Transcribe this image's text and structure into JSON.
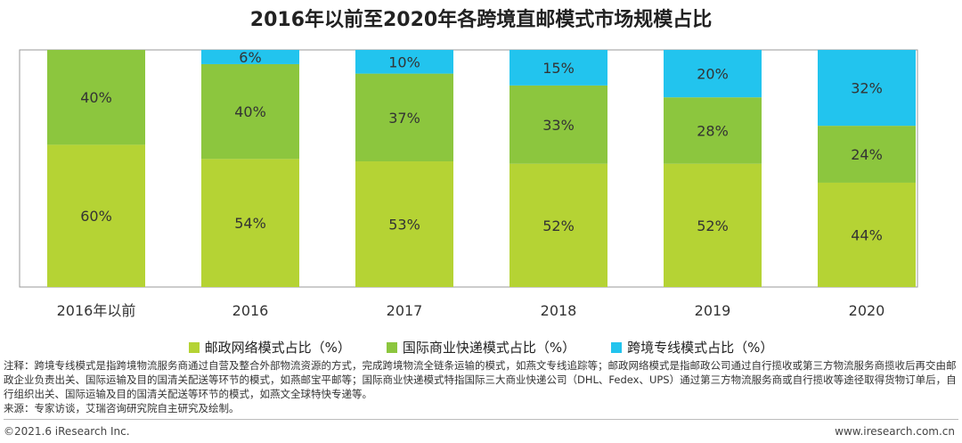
{
  "chart_data": {
    "type": "bar",
    "stacked": true,
    "title": "2016年以前至2020年各跨境直邮模式市场规模占比",
    "categories": [
      "2016年以前",
      "2016",
      "2017",
      "2018",
      "2019",
      "2020"
    ],
    "series": [
      {
        "name": "邮政网络模式占比（%）",
        "color": "#b5d334",
        "values": [
          60,
          54,
          53,
          52,
          52,
          44
        ]
      },
      {
        "name": "国际商业快递模式占比（%）",
        "color": "#8cc63e",
        "values": [
          40,
          40,
          37,
          33,
          28,
          24
        ]
      },
      {
        "name": "跨境专线模式占比（%）",
        "color": "#22c4ee",
        "values": [
          0,
          6,
          10,
          15,
          20,
          32
        ]
      }
    ],
    "label_suffix": "%",
    "ylim": [
      0,
      100
    ]
  },
  "note": "注释：跨境专线模式是指跨境物流服务商通过自营及整合外部物流资源的方式，完成跨境物流全链条运输的模式，如燕文专线追踪等；邮政网络模式是指邮政公司通过自行揽收或第三方物流服务商揽收后再交由邮政企业负责出关、国际运输及目的国清关配送等环节的模式，如燕邮宝平邮等；国际商业快递模式特指国际三大商业快递公司（DHL、Fedex、UPS）通过第三方物流服务商或自行揽收等途径取得货物订单后，自行组织出关、国际运输及目的国清关配送等环节的模式，如燕文全球特快专递等。",
  "source": "来源：专家访谈，艾瑞咨询研究院自主研究及绘制。",
  "footer": {
    "copyright": "©2021.6 iResearch Inc.",
    "website": "www.iresearch.com.cn"
  }
}
